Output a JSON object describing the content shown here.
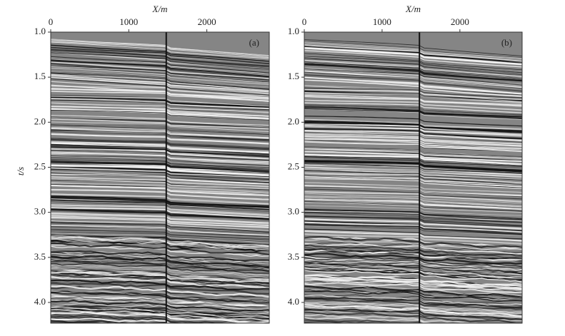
{
  "chart_data": [
    {
      "type": "seismic",
      "panel_label": "(a)",
      "xlabel": "X/m",
      "ylabel": "t/s",
      "xlim": [
        0,
        2800
      ],
      "xticks": [
        0,
        1000,
        2000
      ],
      "ylim": [
        1,
        4.23
      ],
      "yticks": [
        {
          "value": 1,
          "label": "1.0"
        },
        1.5,
        {
          "value": 2,
          "label": "2.0"
        },
        2.5,
        {
          "value": 3,
          "label": "3.0"
        },
        3.5,
        {
          "value": 4,
          "label": "4.0"
        }
      ],
      "marker_x": 1480
    },
    {
      "type": "seismic",
      "panel_label": "(b)",
      "xlabel": "X/m",
      "xlim": [
        0,
        2800
      ],
      "xticks": [
        0,
        1000,
        2000
      ],
      "ylim": [
        1,
        4.23
      ],
      "yticks": [
        {
          "value": 1,
          "label": "1.0"
        },
        1.5,
        {
          "value": 2,
          "label": "2.0"
        },
        2.5,
        {
          "value": 3,
          "label": "3.0"
        },
        3.5,
        {
          "value": 4,
          "label": "4.0"
        }
      ],
      "marker_x": 1480
    }
  ]
}
